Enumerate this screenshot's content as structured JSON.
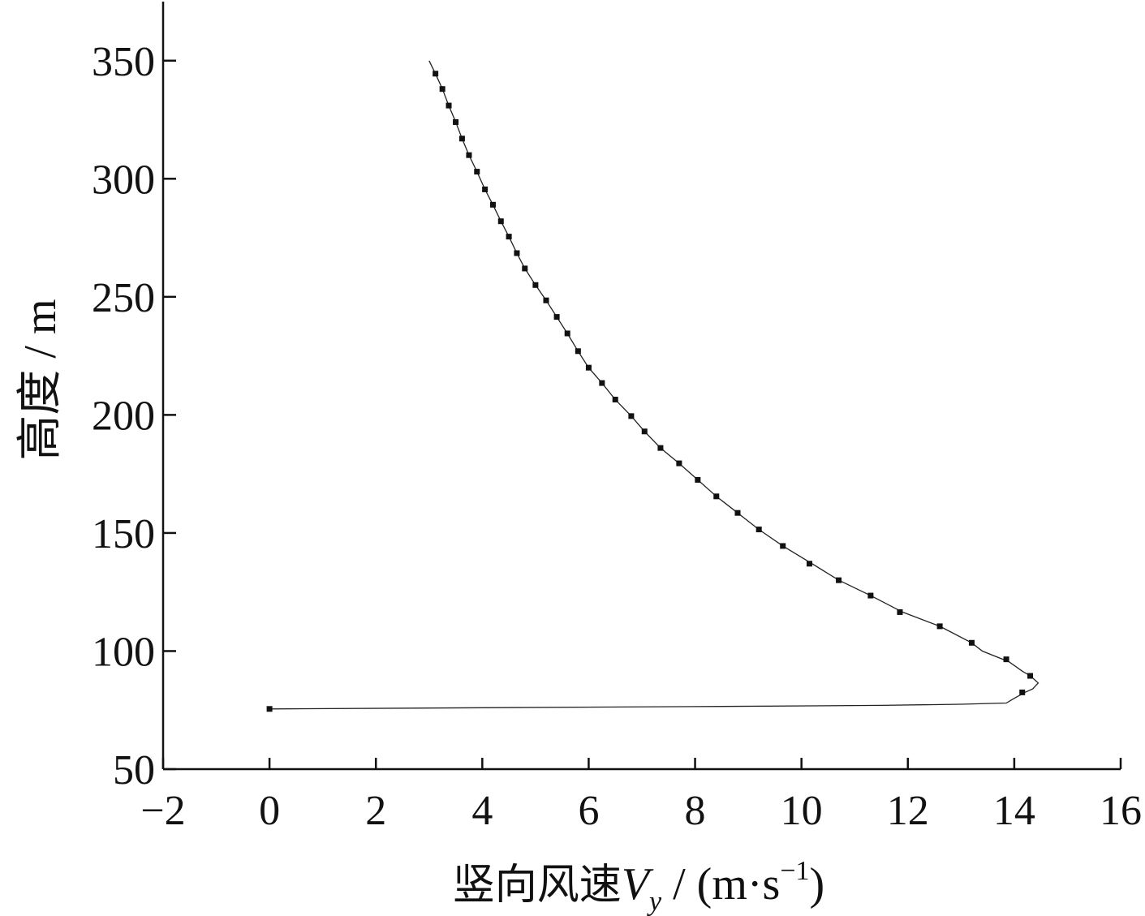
{
  "chart_data": {
    "type": "line",
    "title": "",
    "xlabel": {
      "cjk": "竖向风速",
      "var": "V",
      "sub": "y",
      "unit_pre": " / (m·s",
      "sup": "−1",
      "unit_post": ")"
    },
    "ylabel": "高度 / m",
    "xlim": [
      -2,
      16
    ],
    "ylim": [
      50,
      375
    ],
    "xticks": [
      -2,
      0,
      2,
      4,
      6,
      8,
      10,
      12,
      14,
      16
    ],
    "xtick_labels": [
      "−2",
      "0",
      "2",
      "4",
      "6",
      "8",
      "10",
      "12",
      "14",
      "16"
    ],
    "yticks": [
      50,
      100,
      150,
      200,
      250,
      300,
      350
    ],
    "ytick_labels": [
      "50",
      "100",
      "150",
      "200",
      "250",
      "300",
      "350"
    ],
    "grid": false,
    "legend": "none",
    "series": [
      {
        "line": [
          [
            0.0,
            75.5
          ],
          [
            4.0,
            76.0
          ],
          [
            8.0,
            76.5
          ],
          [
            11.5,
            77.0
          ],
          [
            13.0,
            77.5
          ],
          [
            13.85,
            78.0
          ],
          [
            14.0,
            80.0
          ],
          [
            14.2,
            82.5
          ],
          [
            14.35,
            84.0
          ],
          [
            14.45,
            86.5
          ],
          [
            14.3,
            89.5
          ],
          [
            14.15,
            91.5
          ],
          [
            13.9,
            95.5
          ],
          [
            13.4,
            100.0
          ],
          [
            13.2,
            103.5
          ],
          [
            12.6,
            110.5
          ],
          [
            11.9,
            116.5
          ],
          [
            11.3,
            123.5
          ],
          [
            10.7,
            130.0
          ],
          [
            10.2,
            137.0
          ],
          [
            9.65,
            144.5
          ],
          [
            9.2,
            151.5
          ],
          [
            8.8,
            158.5
          ],
          [
            8.4,
            165.5
          ],
          [
            8.05,
            172.5
          ],
          [
            7.7,
            179.5
          ],
          [
            7.35,
            186.0
          ],
          [
            7.05,
            193.0
          ],
          [
            6.8,
            199.5
          ],
          [
            6.5,
            206.5
          ],
          [
            6.25,
            213.5
          ],
          [
            6.0,
            220.0
          ],
          [
            5.8,
            227.0
          ],
          [
            5.6,
            234.5
          ],
          [
            5.4,
            241.5
          ],
          [
            5.2,
            248.5
          ],
          [
            5.0,
            255.0
          ],
          [
            4.8,
            262.0
          ],
          [
            4.65,
            268.5
          ],
          [
            4.5,
            275.5
          ],
          [
            4.35,
            282.0
          ],
          [
            4.2,
            289.0
          ],
          [
            4.05,
            295.5
          ],
          [
            3.9,
            303.0
          ],
          [
            3.75,
            310.0
          ],
          [
            3.62,
            317.0
          ],
          [
            3.5,
            324.0
          ],
          [
            3.37,
            331.0
          ],
          [
            3.25,
            338.0
          ],
          [
            3.12,
            344.5
          ],
          [
            3.0,
            350.0
          ]
        ],
        "markers": [
          [
            0.0,
            75.5
          ],
          [
            14.15,
            82.5
          ],
          [
            14.3,
            89.5
          ],
          [
            13.85,
            96.5
          ],
          [
            13.2,
            103.5
          ],
          [
            12.6,
            110.5
          ],
          [
            11.85,
            116.5
          ],
          [
            11.3,
            123.5
          ],
          [
            10.7,
            130.0
          ],
          [
            10.15,
            137.0
          ],
          [
            9.65,
            144.5
          ],
          [
            9.2,
            151.5
          ],
          [
            8.8,
            158.5
          ],
          [
            8.4,
            165.5
          ],
          [
            8.05,
            172.5
          ],
          [
            7.7,
            179.5
          ],
          [
            7.35,
            186.0
          ],
          [
            7.05,
            193.0
          ],
          [
            6.8,
            199.5
          ],
          [
            6.5,
            206.5
          ],
          [
            6.25,
            213.5
          ],
          [
            6.0,
            220.0
          ],
          [
            5.8,
            227.0
          ],
          [
            5.6,
            234.5
          ],
          [
            5.4,
            241.5
          ],
          [
            5.2,
            248.5
          ],
          [
            5.0,
            255.0
          ],
          [
            4.8,
            262.0
          ],
          [
            4.65,
            268.5
          ],
          [
            4.5,
            275.5
          ],
          [
            4.35,
            282.0
          ],
          [
            4.2,
            289.0
          ],
          [
            4.05,
            295.5
          ],
          [
            3.9,
            303.0
          ],
          [
            3.75,
            310.0
          ],
          [
            3.62,
            317.0
          ],
          [
            3.5,
            324.0
          ],
          [
            3.37,
            331.0
          ],
          [
            3.25,
            338.0
          ],
          [
            3.12,
            344.5
          ]
        ]
      }
    ]
  }
}
